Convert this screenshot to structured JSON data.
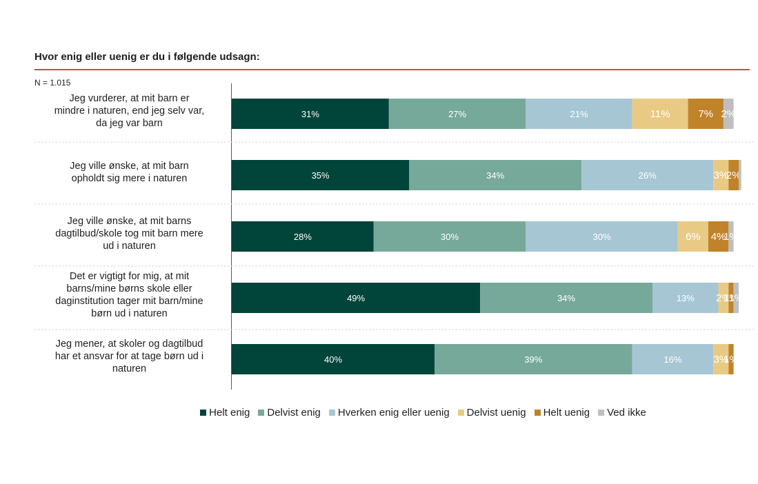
{
  "chart_data": {
    "type": "bar",
    "orientation": "horizontal-stacked-100",
    "title": "Hvor enig eller uenig er du i følgende udsagn:",
    "note": "N = 1.015",
    "categories": [
      "Jeg vurderer, at mit barn er mindre i naturen, end jeg selv var, da jeg var barn",
      "Jeg ville ønske, at mit barn opholdt sig mere i naturen",
      "Jeg ville ønske, at mit barns dagtilbud/skole tog mit barn mere ud i naturen",
      "Det er vigtigt for mig, at mit barns/mine børns skole eller daginstitution tager mit barn/mine børn ud i naturen",
      "Jeg mener, at skoler og dagtilbud har et ansvar for at tage børn ud i naturen"
    ],
    "series": [
      {
        "name": "Helt enig",
        "color": "#00443a",
        "values": [
          31,
          35,
          28,
          49,
          40
        ]
      },
      {
        "name": "Delvist enig",
        "color": "#76a99a",
        "values": [
          27,
          34,
          30,
          34,
          39
        ]
      },
      {
        "name": "Hverken enig eller uenig",
        "color": "#a7c6d4",
        "values": [
          21,
          26,
          30,
          13,
          16
        ]
      },
      {
        "name": "Delvist uenig",
        "color": "#e8ca85",
        "values": [
          11,
          3,
          6,
          2,
          3
        ]
      },
      {
        "name": "Helt uenig",
        "color": "#c0832a",
        "values": [
          7,
          2,
          4,
          1,
          1
        ]
      },
      {
        "name": "Ved ikke",
        "color": "#bfbfbf",
        "values": [
          2,
          0.5,
          1,
          1,
          0
        ]
      }
    ],
    "data_labels": [
      [
        "31%",
        "27%",
        "21%",
        "11%",
        "7%",
        "2%"
      ],
      [
        "35%",
        "34%",
        "26%",
        "3%",
        "2%",
        ""
      ],
      [
        "28%",
        "30%",
        "30%",
        "6%",
        "4%",
        "1%"
      ],
      [
        "49%",
        "34%",
        "13%",
        "2%",
        "1%",
        "1%"
      ],
      [
        "40%",
        "39%",
        "16%",
        "3%",
        "1%",
        ""
      ]
    ],
    "xlim": [
      0,
      100
    ],
    "legend_position": "bottom"
  }
}
